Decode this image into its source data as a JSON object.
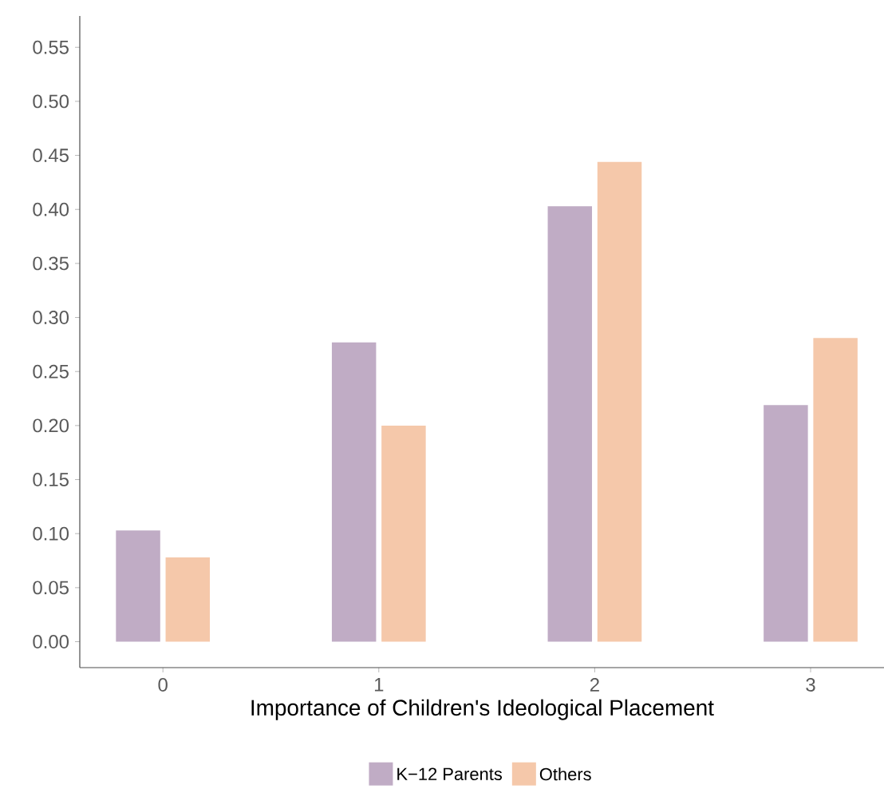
{
  "chart_data": {
    "type": "bar",
    "xlabel": "Importance of Children's Ideological Placement",
    "categories": [
      "0",
      "1",
      "2",
      "3"
    ],
    "series": [
      {
        "name": "K−12 Parents",
        "color": "#c0acc5",
        "values": [
          0.103,
          0.277,
          0.403,
          0.219
        ]
      },
      {
        "name": "Others",
        "color": "#f5c8aa",
        "values": [
          0.078,
          0.2,
          0.444,
          0.281
        ]
      }
    ],
    "ylim": [
      -0.024,
      0.579
    ],
    "yticks": [
      {
        "value": 0,
        "label": "0.00"
      },
      0.05,
      {
        "value": 0.1,
        "label": "0.10"
      },
      0.15,
      {
        "value": 0.2,
        "label": "0.20"
      },
      0.25,
      {
        "value": 0.3,
        "label": "0.30"
      },
      0.35,
      {
        "value": 0.4,
        "label": "0.40"
      },
      0.45,
      {
        "value": 0.5,
        "label": "0.50"
      },
      0.55
    ],
    "grid": false,
    "legend": "bottom"
  }
}
